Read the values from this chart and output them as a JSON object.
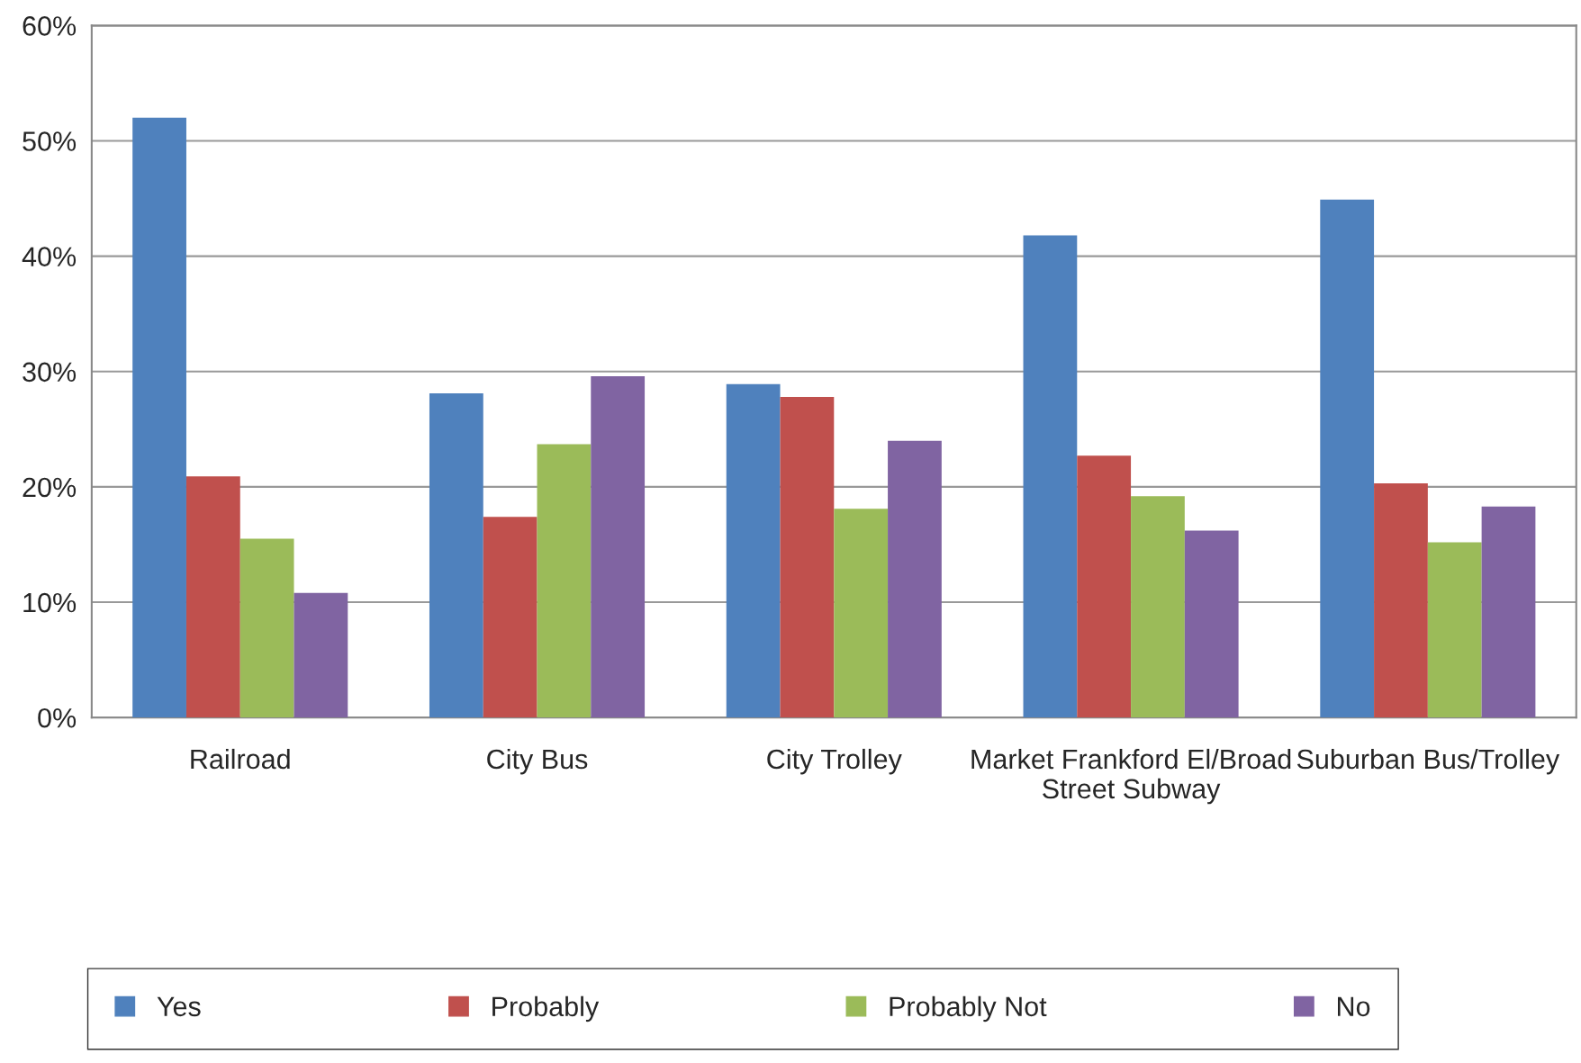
{
  "chart_data": {
    "type": "bar",
    "categories": [
      "Railroad",
      "City Bus",
      "City Trolley",
      "Market Frankford El/Broad\nStreet Subway",
      "Suburban Bus/Trolley"
    ],
    "series": [
      {
        "name": "Yes",
        "color": "#4f81bd",
        "values": [
          52,
          28.1,
          28.9,
          41.8,
          44.9
        ]
      },
      {
        "name": "Probably",
        "color": "#c0504d",
        "values": [
          20.9,
          17.4,
          27.8,
          22.7,
          20.3
        ]
      },
      {
        "name": "Probably Not",
        "color": "#9bbb59",
        "values": [
          15.5,
          23.7,
          18.1,
          19.2,
          15.2
        ]
      },
      {
        "name": "No",
        "color": "#8064a2",
        "values": [
          10.8,
          29.6,
          24.0,
          16.2,
          18.3
        ]
      }
    ],
    "ylim": [
      0,
      60
    ],
    "yticks": [
      {
        "value": 0,
        "label": "0%"
      },
      {
        "value": 10,
        "label": "10%"
      },
      {
        "value": 20,
        "label": "20%"
      },
      {
        "value": 30,
        "label": "30%"
      },
      {
        "value": 40,
        "label": "40%"
      },
      {
        "value": 50,
        "label": "50%"
      },
      {
        "value": 60,
        "label": "60%"
      }
    ],
    "grid": "y",
    "legend": "bottom"
  }
}
